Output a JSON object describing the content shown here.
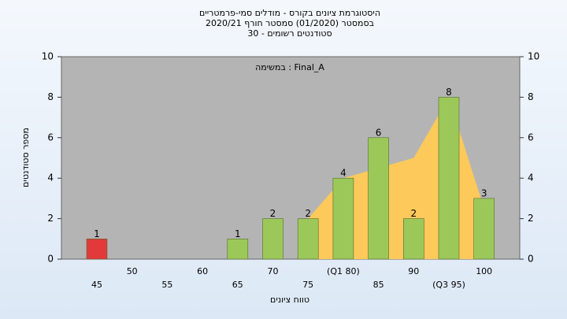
{
  "chart_data": {
    "type": "bar",
    "title": [
      "היסטוגרמת ציונים בקורס - מודלים סמי-פרמטריים",
      "בסמסטר  (01/2020)  סמסטר חורף 2020/21",
      "סטודנטים רשומים - 30"
    ],
    "annotation": "Final_A : במשימה",
    "x_label": "טווח ציונים",
    "y_label": "מספר סטודנטים",
    "categories": [
      "45",
      "50",
      "55",
      "60",
      "65",
      "70",
      "75",
      "(Q1 80)",
      "85",
      "90",
      "(Q3 95)",
      "100"
    ],
    "values": [
      1,
      0,
      0,
      0,
      1,
      2,
      2,
      4,
      6,
      2,
      8,
      3
    ],
    "colors": [
      "#e23a3a",
      "#9cc85a",
      "#9cc85a",
      "#9cc85a",
      "#9cc85a",
      "#9cc85a",
      "#9cc85a",
      "#9cc85a",
      "#9cc85a",
      "#9cc85a",
      "#9cc85a",
      "#9cc85a"
    ],
    "area_values": [
      null,
      null,
      null,
      null,
      null,
      null,
      2,
      4,
      4.5,
      5,
      8,
      2.5
    ],
    "area_color": "#fcc95a",
    "ylim": [
      0,
      10
    ],
    "yticks": [
      0,
      2,
      4,
      6,
      8,
      10
    ],
    "y2lim": [
      0,
      10
    ],
    "y2ticks": [
      0,
      2,
      4,
      6,
      8,
      10
    ]
  }
}
